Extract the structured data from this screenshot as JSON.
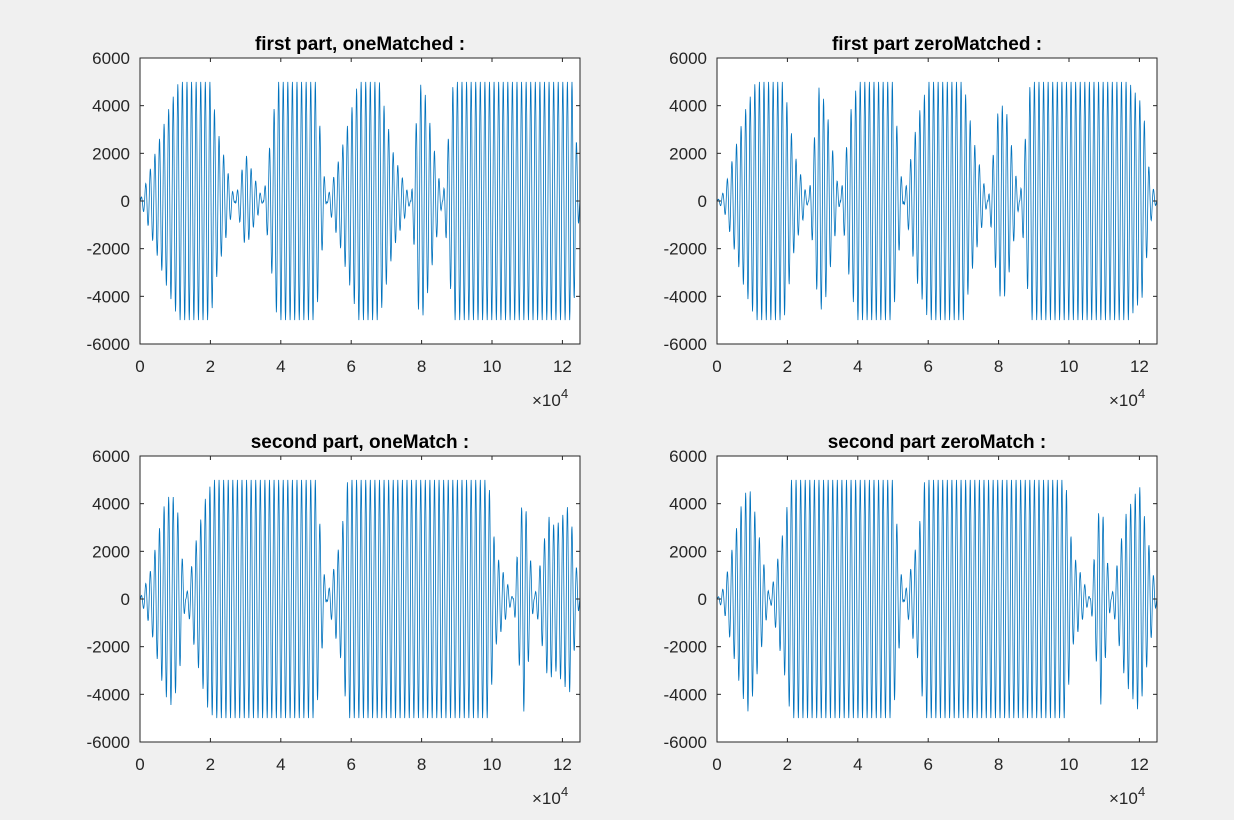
{
  "figure": {
    "background": "#f0f0f0",
    "axes_background": "#ffffff",
    "line_color": "#0072bd"
  },
  "chart_data": [
    {
      "type": "line",
      "title": "first part, oneMatched :",
      "xlim": [
        0,
        125000
      ],
      "ylim": [
        -6000,
        6000
      ],
      "x_ticks": [
        0,
        20000,
        40000,
        60000,
        80000,
        100000,
        120000
      ],
      "x_tick_labels": [
        "0",
        "2",
        "4",
        "6",
        "8",
        "10",
        "12"
      ],
      "x_exponent_label": "×10",
      "x_exponent": "4",
      "y_ticks": [
        6000,
        4000,
        2000,
        0,
        -2000,
        -4000,
        -6000
      ],
      "y_tick_labels": [
        "6000",
        "4000",
        "2000",
        "0",
        "-2000",
        "-4000",
        "-6000"
      ],
      "grid": false,
      "series": [
        {
          "color": "#0072bd",
          "envelope_x": [
            0,
            2000,
            8000,
            11000,
            20000,
            22000,
            27000,
            30000,
            35000,
            39000,
            50000,
            53000,
            57000,
            62000,
            68000,
            72000,
            77000,
            79000,
            80000,
            81000,
            86000,
            89000,
            100000,
            123000,
            125000
          ],
          "envelope_y": [
            0,
            900,
            3800,
            5000,
            5000,
            3000,
            0,
            2000,
            0,
            5000,
            5000,
            0,
            2000,
            5000,
            5000,
            2000,
            0,
            4500,
            5000,
            4500,
            0,
            5000,
            5000,
            5000,
            0
          ]
        }
      ]
    },
    {
      "type": "line",
      "title": "first part zeroMatched :",
      "xlim": [
        0,
        125000
      ],
      "ylim": [
        -6000,
        6000
      ],
      "x_ticks": [
        0,
        20000,
        40000,
        60000,
        80000,
        100000,
        120000
      ],
      "x_tick_labels": [
        "0",
        "2",
        "4",
        "6",
        "8",
        "10",
        "12"
      ],
      "x_exponent_label": "×10",
      "x_exponent": "4",
      "y_ticks": [
        6000,
        4000,
        2000,
        0,
        -2000,
        -4000,
        -6000
      ],
      "y_tick_labels": [
        "6000",
        "4000",
        "2000",
        "0",
        "-2000",
        "-4000",
        "-6000"
      ],
      "grid": false,
      "series": [
        {
          "color": "#0072bd",
          "envelope_x": [
            0,
            2000,
            8000,
            11000,
            19000,
            22000,
            26000,
            29000,
            31000,
            35000,
            38000,
            40000,
            50000,
            53000,
            57000,
            60000,
            70000,
            73000,
            77000,
            80000,
            82000,
            86000,
            89000,
            100000,
            117000,
            121000,
            123000,
            125000
          ],
          "envelope_y": [
            0,
            400,
            3800,
            5000,
            5000,
            2000,
            0,
            4800,
            4000,
            0,
            3800,
            5000,
            5000,
            0,
            3500,
            5000,
            5000,
            2500,
            0,
            4000,
            4000,
            0,
            5000,
            5000,
            5000,
            4000,
            1000,
            0
          ]
        }
      ]
    },
    {
      "type": "line",
      "title": "second part, oneMatch :",
      "xlim": [
        0,
        125000
      ],
      "ylim": [
        -6000,
        6000
      ],
      "x_ticks": [
        0,
        20000,
        40000,
        60000,
        80000,
        100000,
        120000
      ],
      "x_tick_labels": [
        "0",
        "2",
        "4",
        "6",
        "8",
        "10",
        "12"
      ],
      "x_exponent_label": "×10",
      "x_exponent": "4",
      "y_ticks": [
        6000,
        4000,
        2000,
        0,
        -2000,
        -4000,
        -6000
      ],
      "y_tick_labels": [
        "6000",
        "4000",
        "2000",
        "0",
        "-2000",
        "-4000",
        "-6000"
      ],
      "grid": false,
      "series": [
        {
          "color": "#0072bd",
          "envelope_x": [
            0,
            3000,
            7000,
            9000,
            11000,
            13000,
            16000,
            19000,
            21000,
            50000,
            53000,
            57000,
            59000,
            61000,
            99000,
            101000,
            106000,
            109000,
            112000,
            116000,
            118000,
            122000,
            125000
          ],
          "envelope_y": [
            0,
            1200,
            4000,
            4500,
            3500,
            0,
            2500,
            4500,
            5000,
            5000,
            0,
            2500,
            5000,
            5000,
            5000,
            2000,
            0,
            4800,
            0,
            3500,
            3000,
            4000,
            0
          ]
        }
      ]
    },
    {
      "type": "line",
      "title": "second part zeroMatch :",
      "xlim": [
        0,
        125000
      ],
      "ylim": [
        -6000,
        6000
      ],
      "x_ticks": [
        0,
        20000,
        40000,
        60000,
        80000,
        100000,
        120000
      ],
      "x_tick_labels": [
        "0",
        "2",
        "4",
        "6",
        "8",
        "10",
        "12"
      ],
      "x_exponent_label": "×10",
      "x_exponent": "4",
      "y_ticks": [
        6000,
        4000,
        2000,
        0,
        -2000,
        -4000,
        -6000
      ],
      "y_tick_labels": [
        "6000",
        "4000",
        "2000",
        "0",
        "-2000",
        "-4000",
        "-6000"
      ],
      "grid": false,
      "series": [
        {
          "color": "#0072bd",
          "envelope_x": [
            0,
            2000,
            7000,
            9000,
            11000,
            15000,
            19000,
            21000,
            50000,
            53000,
            57000,
            59000,
            61000,
            99000,
            101000,
            106000,
            109000,
            112000,
            116000,
            120000,
            123000,
            125000
          ],
          "envelope_y": [
            0,
            500,
            4000,
            4800,
            3500,
            0,
            3000,
            5000,
            5000,
            0,
            2500,
            5000,
            5000,
            5000,
            2000,
            0,
            4500,
            0,
            3500,
            4800,
            2000,
            0
          ]
        }
      ]
    }
  ]
}
